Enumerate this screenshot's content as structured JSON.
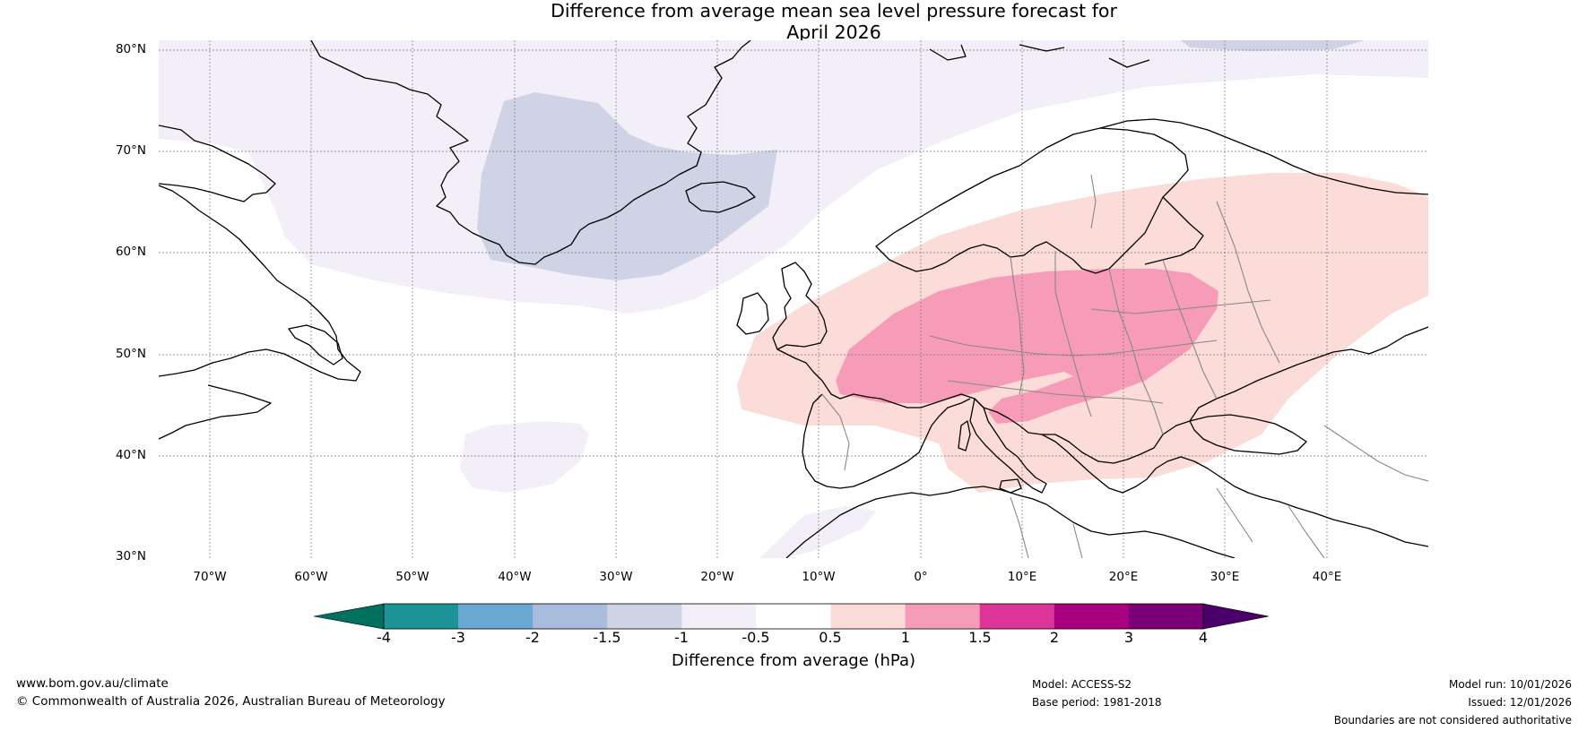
{
  "header": {
    "title_line1": "Difference from average mean sea level pressure forecast for",
    "title_line2": "April 2026"
  },
  "map": {
    "projection": "Plate Carree",
    "region": "North Atlantic and Europe",
    "lon_range": [
      -75,
      50
    ],
    "lat_range": [
      30,
      81
    ],
    "lat_labels": [
      "80°N",
      "70°N",
      "60°N",
      "50°N",
      "40°N",
      "30°N"
    ],
    "lon_labels": [
      "70°W",
      "60°W",
      "50°W",
      "40°W",
      "30°W",
      "20°W",
      "10°W",
      "0°",
      "10°E",
      "20°E",
      "30°E",
      "40°E"
    ],
    "anomaly_regions": [
      {
        "name": "Arctic weak negative band",
        "range_hPa": "-1 to -0.5",
        "color": "#f3eff8"
      },
      {
        "name": "Greenland Sea / Iceland negative",
        "range_hPa": "-1.5 to -1",
        "color": "#d0d2e6"
      },
      {
        "name": "Central Atlantic weak negative patch",
        "range_hPa": "-1 to -0.5",
        "color": "#f3eff8"
      },
      {
        "name": "Europe positive anomaly",
        "range_hPa": "0.5 to 1",
        "color": "#fbdcd8"
      },
      {
        "name": "Central Europe stronger positive",
        "range_hPa": "1 to 1.5",
        "color": "#f79cb8"
      }
    ]
  },
  "colorbar": {
    "title": "Difference from average (hPa)",
    "tick_labels": [
      "-4",
      "-3",
      "-2",
      "-1.5",
      "-1",
      "-0.5",
      "0.5",
      "1",
      "1.5",
      "2",
      "3",
      "4"
    ],
    "colors": {
      "under": "#00705f",
      "bins": [
        "#1b9397",
        "#6aa9d1",
        "#a9bcdb",
        "#d0d2e6",
        "#f3eff8",
        "#ffffff",
        "#fbdcd8",
        "#f79cb8",
        "#dc3597",
        "#a8007f",
        "#7a0077"
      ],
      "over": "#4a006a"
    }
  },
  "footer": {
    "website": "www.bom.gov.au/climate",
    "copyright": "© Commonwealth of Australia 2026, Australian Bureau of Meteorology",
    "model": "Model: ACCESS-S2",
    "base_period": "Base period: 1981-2018",
    "model_run": "Model run: 10/01/2026",
    "issued": "Issued: 12/01/2026",
    "disclaimer": "Boundaries are not considered authoritative"
  }
}
